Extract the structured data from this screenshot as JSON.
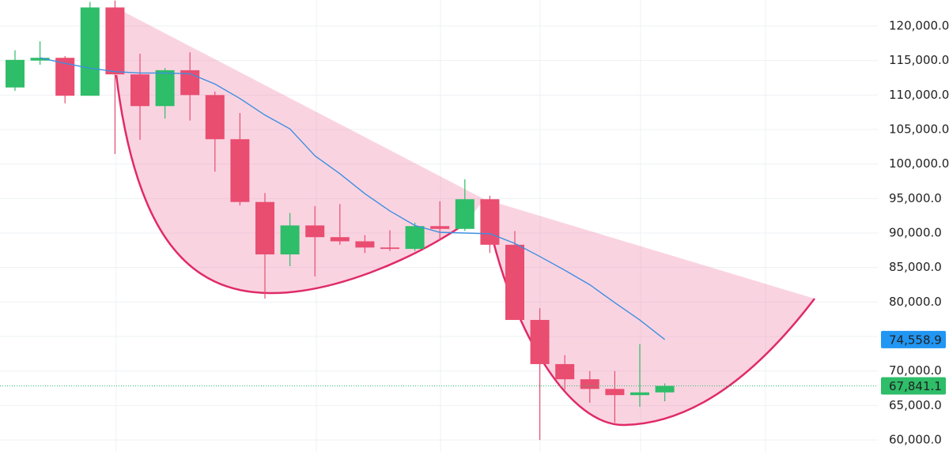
{
  "chart_data": {
    "type": "candlestick",
    "ylim": [
      58280,
      123780
    ],
    "yticks": [
      {
        "value": 60000,
        "label": "60,000.0"
      },
      {
        "value": 65000,
        "label": "65,000.0"
      },
      {
        "value": 70000,
        "label": "70,000.0"
      },
      {
        "value": 75000,
        "label": "75,000.0"
      },
      {
        "value": 80000,
        "label": "80,000.0"
      },
      {
        "value": 85000,
        "label": "85,000.0"
      },
      {
        "value": 90000,
        "label": "90,000.0"
      },
      {
        "value": 95000,
        "label": "95,000.0"
      },
      {
        "value": 100000,
        "label": "100,000.0"
      },
      {
        "value": 105000,
        "label": "105,000.0"
      },
      {
        "value": 110000,
        "label": "110,000.0"
      },
      {
        "value": 115000,
        "label": "115,000.0"
      },
      {
        "value": 120000,
        "label": "120,000.0"
      }
    ],
    "grid": true,
    "up_color": "#2ebd68",
    "down_color": "#e94d70",
    "open": [
      111100,
      115000,
      115400,
      109900,
      122700,
      113000,
      108400,
      113600,
      110000,
      103600,
      94500,
      86900,
      91100,
      89400,
      88800,
      87900,
      87700,
      91000,
      90600,
      94900,
      88300,
      77400,
      71000,
      68800,
      67400,
      66500,
      66900
    ],
    "high": [
      116500,
      117800,
      115650,
      123500,
      123700,
      116000,
      113900,
      116200,
      110500,
      107400,
      95800,
      92900,
      93900,
      94200,
      89700,
      90400,
      91500,
      94600,
      97800,
      95400,
      90300,
      79100,
      72300,
      70000,
      70000,
      73900,
      68200
    ],
    "low": [
      110600,
      114400,
      108800,
      109900,
      101450,
      103500,
      106600,
      106300,
      98900,
      94000,
      80500,
      85200,
      83700,
      88300,
      87100,
      87400,
      87400,
      88900,
      90300,
      87100,
      77400,
      60000,
      67300,
      65400,
      62500,
      64800,
      65600
    ],
    "close": [
      115100,
      115400,
      109900,
      122700,
      113000,
      108400,
      113600,
      110000,
      103600,
      94500,
      86900,
      91100,
      89400,
      88800,
      87900,
      87700,
      91000,
      90600,
      94900,
      88300,
      77400,
      71000,
      68800,
      67400,
      66500,
      66900,
      67841.1
    ],
    "series": [
      {
        "color": "#3d8fe0",
        "values": [
          115400,
          114600,
          113900,
          113400,
          113200,
          113200,
          113100,
          111600,
          109500,
          107100,
          105100,
          101200,
          98600,
          95700,
          93200,
          91100,
          90100,
          90000,
          89900,
          88500,
          86600,
          84600,
          82500,
          79900,
          77400,
          74558.9
        ]
      }
    ],
    "price_lines": [
      {
        "value": 74558.9,
        "label": "74,558.9",
        "color": "#2196f3"
      },
      {
        "value": 67841.1,
        "label": "67,841.1",
        "color": "#2ebd68"
      }
    ]
  }
}
